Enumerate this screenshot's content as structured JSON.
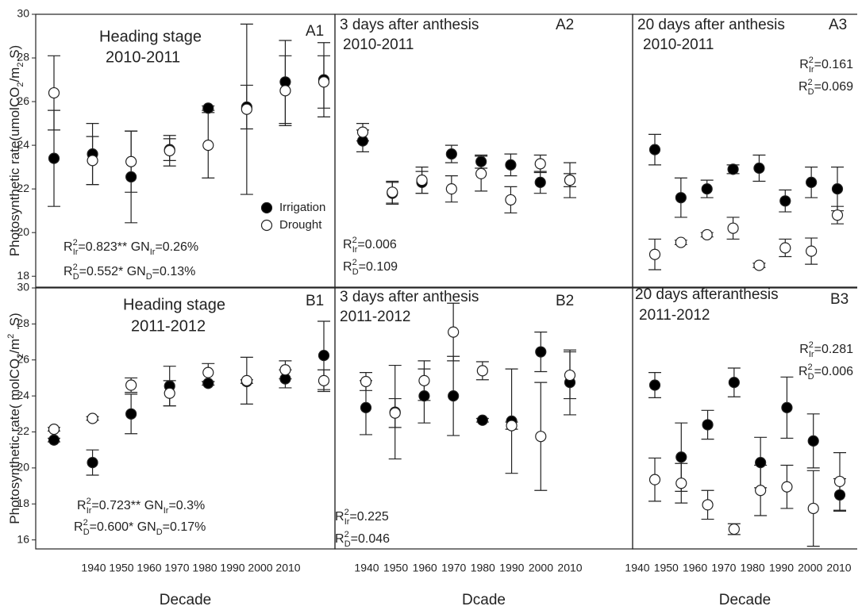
{
  "chart_data": [
    {
      "type": "scatter",
      "title": [
        "Heading stage",
        "2010-2011"
      ],
      "panel": "A1",
      "y_label": [
        "Photosynthetic rate(umolCO",
        {
          "sub": "2"
        },
        "/m",
        {
          "sub": "2"
        },
        ".S)"
      ],
      "ylim": [
        17.5,
        30
      ],
      "yticks": [
        18,
        20,
        22,
        24,
        26,
        28,
        30
      ],
      "legend": true,
      "annotations": [
        [
          "R",
          {
            "sup": "2"
          },
          {
            "sub": "Ir"
          },
          "=0.823** GN",
          {
            "sub": "Ir"
          },
          "=0.26%"
        ],
        [
          "R",
          {
            "sup": "2"
          },
          {
            "sub": "D"
          },
          "=0.552* GN",
          {
            "sub": "D"
          },
          "=0.13%"
        ]
      ],
      "series": [
        {
          "name": "Irrigation",
          "color": "#000000",
          "values": [
            23.4,
            23.6,
            22.55,
            23.8,
            25.7,
            25.75,
            26.9,
            27.0
          ],
          "errors": [
            2.2,
            1.4,
            2.1,
            0.5,
            0.1,
            1.0,
            1.9,
            1.7
          ]
        },
        {
          "name": "Drought",
          "color": "#ffffff",
          "values": [
            26.4,
            23.3,
            23.25,
            23.75,
            24.0,
            25.65,
            26.5,
            26.9
          ],
          "errors": [
            1.7,
            1.1,
            1.4,
            0.7,
            1.5,
            3.9,
            1.6,
            1.2
          ]
        }
      ]
    },
    {
      "type": "scatter",
      "title": [
        "3 days after anthesis",
        "2010-2011"
      ],
      "panel": "A2",
      "ylim": [
        17.5,
        30
      ],
      "annotations": [
        [
          "R",
          {
            "sup": "2"
          },
          {
            "sub": "Ir"
          },
          "=0.006"
        ],
        [
          "R",
          {
            "sup": "2"
          },
          {
            "sub": "D"
          },
          "=0.109"
        ]
      ],
      "series": [
        {
          "name": "Irrigation",
          "color": "#000000",
          "values": [
            24.2,
            21.8,
            22.3,
            23.6,
            23.25,
            23.1,
            22.3,
            22.4
          ],
          "errors": [
            0.5,
            0.5,
            0.5,
            0.4,
            0.3,
            0.5,
            0.5,
            0.3
          ]
        },
        {
          "name": "Drought",
          "color": "#ffffff",
          "values": [
            24.6,
            21.85,
            22.4,
            22.0,
            22.7,
            21.5,
            23.15,
            22.4
          ],
          "errors": [
            0.4,
            0.5,
            0.6,
            0.6,
            0.8,
            0.6,
            0.4,
            0.8
          ]
        }
      ]
    },
    {
      "type": "scatter",
      "title": [
        "20 days after anthesis",
        "2010-2011"
      ],
      "panel": "A3",
      "ylim": [
        17.5,
        30
      ],
      "annotations": [
        [
          "R",
          {
            "sup": "2"
          },
          {
            "sub": "Ir"
          },
          "=0.161"
        ],
        [
          "R",
          {
            "sup": "2"
          },
          {
            "sub": "D"
          },
          "=0.069"
        ]
      ],
      "series": [
        {
          "name": "Irrigation",
          "color": "#000000",
          "values": [
            23.8,
            21.6,
            22.0,
            22.9,
            22.95,
            21.45,
            22.3,
            22.0
          ],
          "errors": [
            0.7,
            0.9,
            0.4,
            0.2,
            0.6,
            0.5,
            0.7,
            1.0
          ]
        },
        {
          "name": "Drought",
          "color": "#ffffff",
          "values": [
            19.0,
            19.55,
            19.9,
            20.2,
            18.5,
            19.3,
            19.15,
            20.8
          ],
          "errors": [
            0.7,
            0.1,
            0.1,
            0.5,
            0.1,
            0.4,
            0.6,
            0.4
          ]
        }
      ]
    },
    {
      "type": "scatter",
      "title": [
        "Heading stage",
        "2011-2012"
      ],
      "panel": "B1",
      "y_label": [
        "Photosynthetic rate(  molCO",
        {
          "sub": "2"
        },
        "/m",
        {
          "sup": "2"
        },
        " .S)"
      ],
      "x_label": "Decade",
      "categories": [
        "1940",
        "1950",
        "1960",
        "1970",
        "1980",
        "1990",
        "2000",
        "2010"
      ],
      "ylim": [
        15.5,
        30
      ],
      "yticks": [
        16,
        18,
        20,
        22,
        24,
        26,
        28,
        30
      ],
      "annotations": [
        [
          "R",
          {
            "sup": "2"
          },
          {
            "sub": "Ir"
          },
          "=0.723** GN",
          {
            "sub": "Ir"
          },
          "=0.3%"
        ],
        [
          "R",
          {
            "sup": "2"
          },
          {
            "sub": "D"
          },
          "=0.600*  GN",
          {
            "sub": "D"
          },
          "=0.17%"
        ]
      ],
      "series": [
        {
          "name": "Irrigation",
          "color": "#000000",
          "values": [
            21.55,
            20.3,
            23.0,
            24.55,
            24.7,
            24.8,
            24.95,
            26.25
          ],
          "errors": [
            0.1,
            0.7,
            1.1,
            1.1,
            0.1,
            0.1,
            0.5,
            1.9
          ]
        },
        {
          "name": "Drought",
          "color": "#ffffff",
          "values": [
            22.15,
            22.75,
            24.6,
            24.15,
            25.3,
            24.85,
            25.45,
            24.85
          ],
          "errors": [
            0.1,
            0.1,
            0.4,
            0.7,
            0.5,
            1.3,
            0.5,
            0.6
          ]
        }
      ]
    },
    {
      "type": "scatter",
      "title": [
        "3 days after anthesis",
        "2011-2012"
      ],
      "panel": "B2",
      "x_label": "Dcade",
      "categories": [
        "1940",
        "1950",
        "1960",
        "1970",
        "1980",
        "1990",
        "2000",
        "2010"
      ],
      "ylim": [
        15.5,
        30
      ],
      "annotations": [
        [
          "R",
          {
            "sup": "2"
          },
          {
            "sub": "Ir"
          },
          "=0.225"
        ],
        [
          "R",
          {
            "sup": "2"
          },
          {
            "sub": "D"
          },
          "=0.046"
        ]
      ],
      "series": [
        {
          "name": "Irrigation",
          "color": "#000000",
          "values": [
            23.35,
            23.1,
            24.0,
            24.0,
            22.65,
            22.6,
            26.45,
            24.75
          ],
          "errors": [
            1.5,
            2.6,
            1.5,
            2.2,
            0.1,
            2.9,
            1.1,
            1.8
          ]
        },
        {
          "name": "Drought",
          "color": "#ffffff",
          "values": [
            24.8,
            23.05,
            24.85,
            27.55,
            25.4,
            22.35,
            21.75,
            25.15
          ],
          "errors": [
            0.5,
            0.8,
            1.1,
            1.6,
            0.5,
            0.2,
            3.0,
            1.3
          ]
        }
      ]
    },
    {
      "type": "scatter",
      "title": [
        "20 days afteranthesis",
        "2011-2012"
      ],
      "panel": "B3",
      "x_label": "Decade",
      "categories": [
        "1940",
        "1950",
        "1960",
        "1970",
        "1980",
        "1990",
        "2000",
        "2010"
      ],
      "ylim": [
        15.5,
        30
      ],
      "annotations": [
        [
          "R",
          {
            "sup": "2"
          },
          {
            "sub": "Ir"
          },
          "=0.281"
        ],
        [
          "R",
          {
            "sup": "2"
          },
          {
            "sub": "D"
          },
          "=0.006"
        ]
      ],
      "series": [
        {
          "name": "Irrigation",
          "color": "#000000",
          "values": [
            24.6,
            20.6,
            22.4,
            24.75,
            20.3,
            23.35,
            21.5,
            18.5
          ],
          "errors": [
            0.7,
            1.9,
            0.8,
            0.8,
            1.4,
            1.7,
            1.5,
            0.9
          ]
        },
        {
          "name": "Drought",
          "color": "#ffffff",
          "values": [
            19.35,
            19.15,
            17.95,
            16.6,
            18.75,
            18.95,
            17.75,
            19.25
          ],
          "errors": [
            1.2,
            1.1,
            0.8,
            0.3,
            1.4,
            1.2,
            2.1,
            1.6
          ]
        }
      ]
    }
  ]
}
